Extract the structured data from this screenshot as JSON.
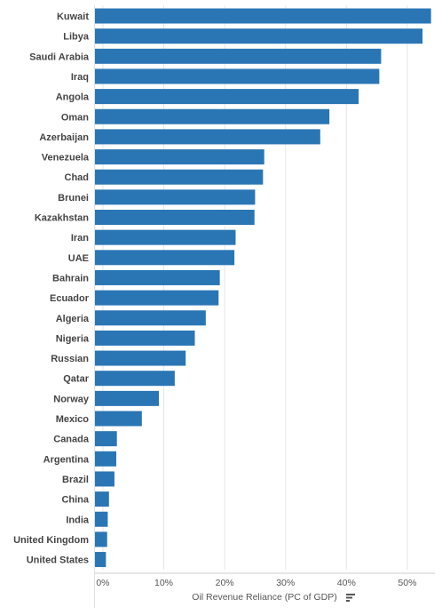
{
  "chart_data": {
    "type": "bar",
    "orientation": "horizontal",
    "categories": [
      "Kuwait",
      "Libya",
      "Saudi Arabia",
      "Iraq",
      "Angola",
      "Oman",
      "Azerbaijan",
      "Venezuela",
      "Chad",
      "Brunei",
      "Kazakhstan",
      "Iran",
      "UAE",
      "Bahrain",
      "Ecuador",
      "Algeria",
      "Nigeria",
      "Russian",
      "Qatar",
      "Norway",
      "Mexico",
      "Canada",
      "Argentina",
      "Brazil",
      "China",
      "India",
      "United Kingdom",
      "United States"
    ],
    "values": [
      53.9,
      52.5,
      45.7,
      45.4,
      42.0,
      37.2,
      35.7,
      26.5,
      26.3,
      25.0,
      24.9,
      21.8,
      21.6,
      19.2,
      19.0,
      16.9,
      15.1,
      13.6,
      11.8,
      9.2,
      6.4,
      2.3,
      2.2,
      1.9,
      1.0,
      0.8,
      0.7,
      0.5
    ],
    "xlabel": "Oil Revenue Reliance (PC of GDP)",
    "ylabel": "",
    "xlim": [
      -1.3,
      55
    ],
    "x_ticks": [
      "0%",
      "10%",
      "20%",
      "30%",
      "40%",
      "50%"
    ],
    "x_tick_values": [
      0,
      10,
      20,
      30,
      40,
      50
    ],
    "bar_color": "#2a76b5",
    "grid": true,
    "grid_color": "#e6e6e6",
    "legend": "none",
    "sort_icon": "sort-descending-icon"
  }
}
